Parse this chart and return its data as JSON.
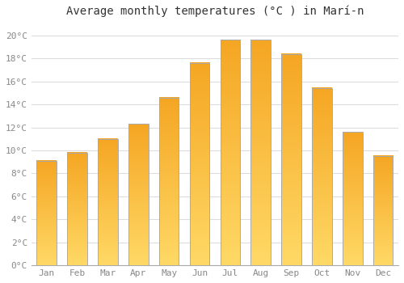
{
  "title": "Average monthly temperatures (°C ) in Marí-n",
  "months": [
    "Jan",
    "Feb",
    "Mar",
    "Apr",
    "May",
    "Jun",
    "Jul",
    "Aug",
    "Sep",
    "Oct",
    "Nov",
    "Dec"
  ],
  "temperatures": [
    9.1,
    9.8,
    11.0,
    12.3,
    14.6,
    17.6,
    19.6,
    19.6,
    18.4,
    15.4,
    11.6,
    9.5
  ],
  "bar_color_top": "#F5A623",
  "bar_color_bottom": "#FFD966",
  "bar_edge_color": "#AAAAAA",
  "background_color": "#FFFFFF",
  "grid_color": "#DDDDDD",
  "ylim": [
    0,
    21
  ],
  "yticks": [
    0,
    2,
    4,
    6,
    8,
    10,
    12,
    14,
    16,
    18,
    20
  ],
  "title_fontsize": 10,
  "tick_fontsize": 8,
  "font_family": "monospace"
}
